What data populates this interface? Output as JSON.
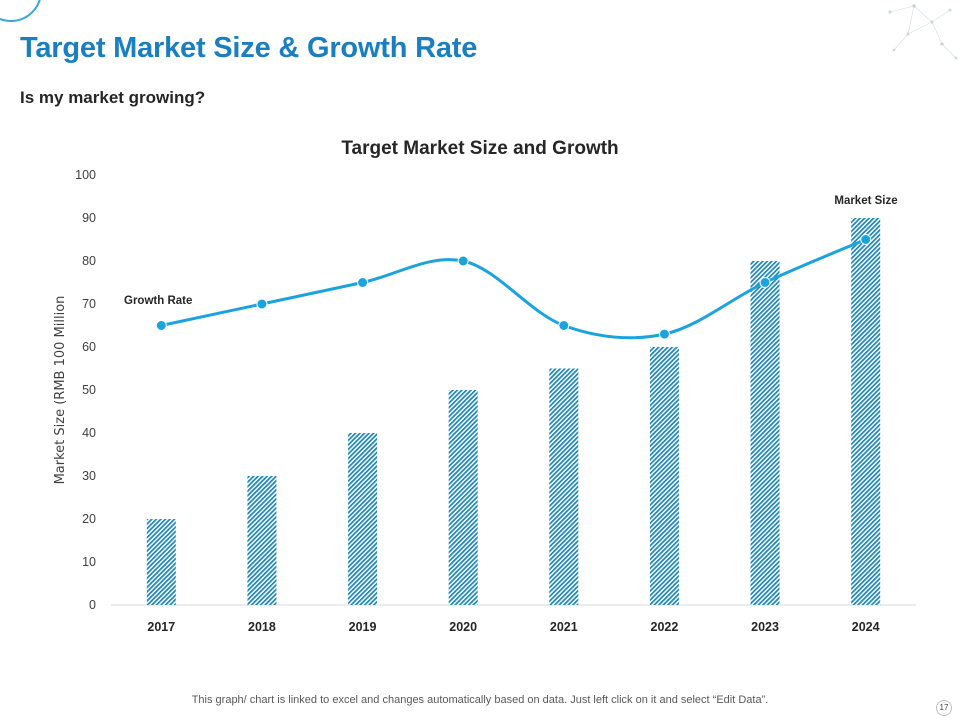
{
  "slide": {
    "title": "Target Market Size & Growth Rate",
    "subtitle": "Is my market growing?",
    "footer_note": "This graph/ chart is linked to excel and changes automatically based on data. Just left click on it and select “Edit Data”.",
    "page_number": "17"
  },
  "colors": {
    "title": "#1a7fc1",
    "bar_stripe": "#1b86b8",
    "line": "#1aa3dd",
    "axis_text": "#404040"
  },
  "chart_data": {
    "type": "bar",
    "title": "Target Market Size and Growth",
    "xlabel": "",
    "ylabel": "Market Size (RMB 100 Million",
    "ylim": [
      0,
      100
    ],
    "yticks": [
      0,
      10,
      20,
      30,
      40,
      50,
      60,
      70,
      80,
      90,
      100
    ],
    "categories": [
      "2017",
      "2018",
      "2019",
      "2020",
      "2021",
      "2022",
      "2023",
      "2024"
    ],
    "series": [
      {
        "name": "Market Size",
        "kind": "bar",
        "values": [
          20,
          30,
          40,
          50,
          55,
          60,
          80,
          90
        ]
      },
      {
        "name": "Growth Rate",
        "kind": "line",
        "smooth": true,
        "values": [
          65,
          70,
          75,
          80,
          65,
          63,
          75,
          85
        ]
      }
    ],
    "grid": false,
    "bar_fill": "diagonal-hatch"
  }
}
